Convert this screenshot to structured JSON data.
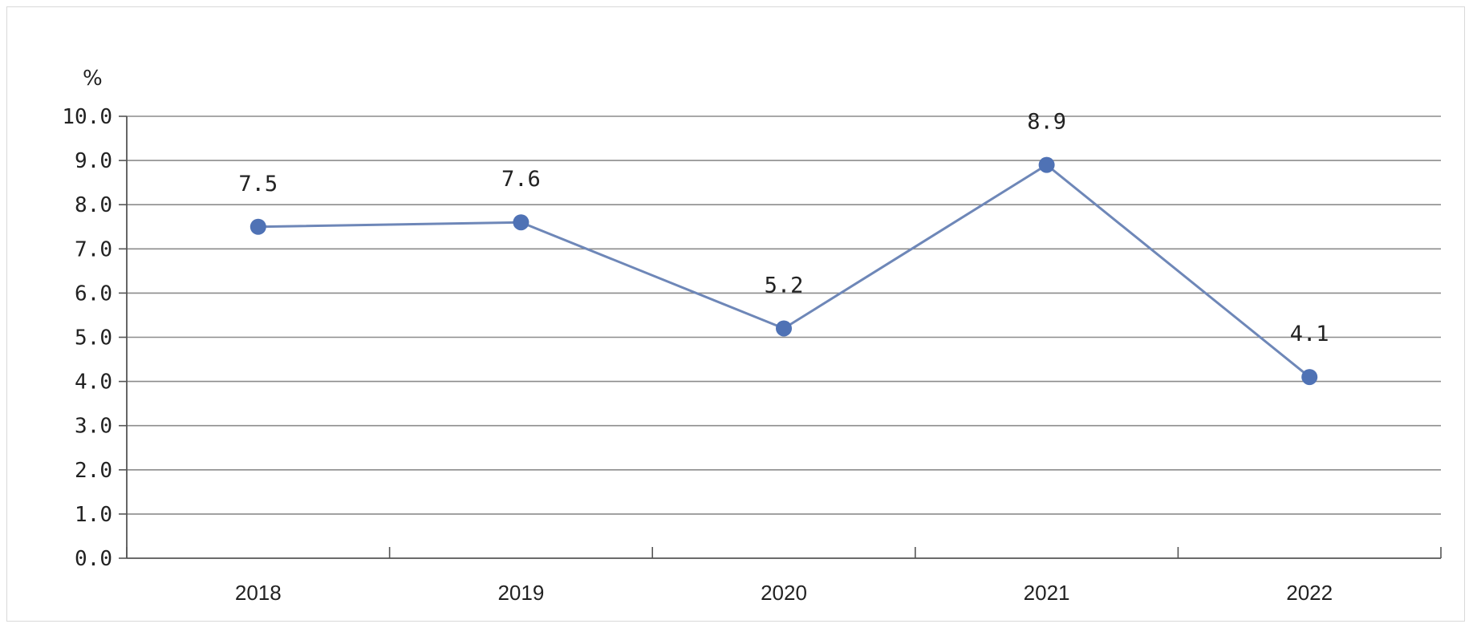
{
  "chart_data": {
    "type": "line",
    "title": "",
    "xlabel": "",
    "ylabel": "%",
    "categories": [
      "2018",
      "2019",
      "2020",
      "2021",
      "2022"
    ],
    "series": [
      {
        "values": [
          7.5,
          7.6,
          5.2,
          8.9,
          4.1
        ],
        "data_labels": [
          "7.5",
          "7.6",
          "5.2",
          "8.9",
          "4.1"
        ],
        "color": "#6e87b8",
        "marker_color": "#4f72b5"
      }
    ],
    "ylim": [
      0,
      10
    ],
    "yticks": [
      0,
      1,
      2,
      3,
      4,
      5,
      6,
      7,
      8,
      9,
      10
    ],
    "ytick_labels": [
      "0.0",
      "1.0",
      "2.0",
      "3.0",
      "4.0",
      "5.0",
      "6.0",
      "7.0",
      "8.0",
      "9.0",
      "10.0"
    ],
    "grid": true,
    "legend": "none"
  }
}
